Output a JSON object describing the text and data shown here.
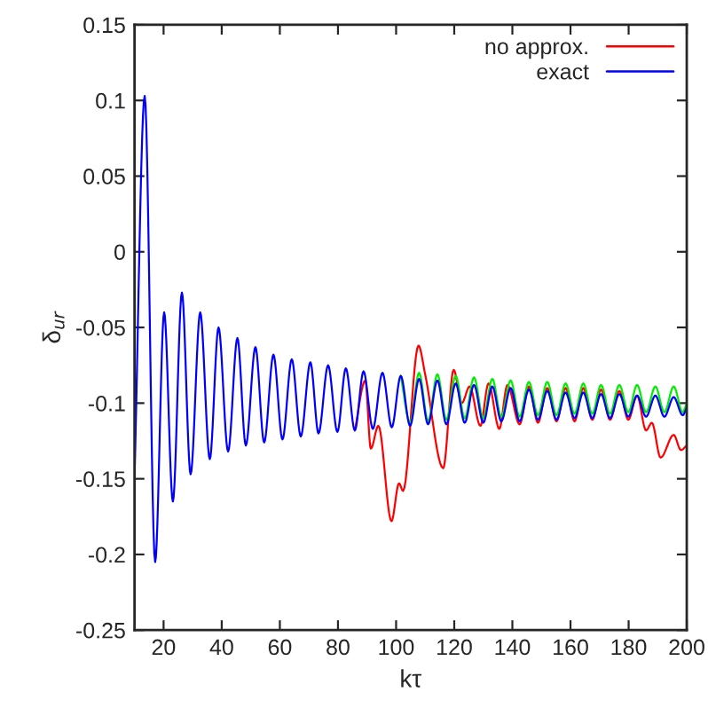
{
  "chart_data": {
    "type": "line",
    "xlabel": "kτ",
    "ylabel": "δ$_{ur}$",
    "xlim": [
      10,
      200
    ],
    "ylim": [
      -0.25,
      0.15
    ],
    "xticks": [
      20,
      40,
      60,
      80,
      100,
      120,
      140,
      160,
      180,
      200
    ],
    "yticks": [
      -0.25,
      -0.2,
      -0.15,
      -0.1,
      -0.05,
      0,
      0.05,
      0.1,
      0.15
    ],
    "grid": false,
    "legend": "top right",
    "marker": "none",
    "line_style": "solid",
    "series": [
      {
        "name": "no approx.",
        "color": "#ff0000",
        "x": [
          85.8,
          89.4,
          91.3,
          93.9,
          98.4,
          101,
          102.4,
          107.7,
          110,
          116.2,
          119.8,
          122.6,
          125.3,
          129,
          131.8,
          135.5,
          138.3,
          142.5,
          145.7,
          148.8,
          152,
          155.2,
          158.3,
          161.4,
          164.4,
          167.5,
          170.5,
          173.6,
          176.8,
          179.9,
          182.9,
          186,
          188,
          191,
          195.5,
          198,
          200
        ],
        "values": [
          -0.118,
          -0.085,
          -0.13,
          -0.115,
          -0.178,
          -0.153,
          -0.158,
          -0.062,
          -0.081,
          -0.143,
          -0.078,
          -0.1,
          -0.089,
          -0.115,
          -0.087,
          -0.117,
          -0.088,
          -0.114,
          -0.089,
          -0.113,
          -0.09,
          -0.112,
          -0.09,
          -0.112,
          -0.09,
          -0.111,
          -0.091,
          -0.111,
          -0.092,
          -0.111,
          -0.095,
          -0.118,
          -0.113,
          -0.136,
          -0.121,
          -0.131,
          -0.128
        ]
      },
      {
        "color": "#00ee00",
        "x": [
          101.6,
          104.8,
          107.9,
          111,
          114.2,
          117.3,
          120.5,
          123.6,
          126.8,
          130,
          133.1,
          136.2,
          139.4,
          142.5,
          145.7,
          148.8,
          152,
          155.2,
          158.3,
          161.4,
          164.4,
          167.5,
          170.5,
          173.6,
          176.8,
          179.9,
          182.9,
          186,
          189.2,
          192.3,
          195.5,
          198.6,
          200
        ],
        "values": [
          -0.082,
          -0.113,
          -0.08,
          -0.112,
          -0.081,
          -0.111,
          -0.082,
          -0.11,
          -0.083,
          -0.11,
          -0.084,
          -0.109,
          -0.085,
          -0.109,
          -0.086,
          -0.108,
          -0.086,
          -0.108,
          -0.087,
          -0.107,
          -0.087,
          -0.107,
          -0.088,
          -0.107,
          -0.088,
          -0.106,
          -0.088,
          -0.106,
          -0.089,
          -0.106,
          -0.089,
          -0.106,
          -0.1
        ]
      },
      {
        "name": "exact",
        "color": "#0000ff",
        "x": [
          10,
          13.5,
          17.1,
          20.2,
          23.2,
          26.3,
          29.3,
          32.6,
          35.9,
          38.9,
          42.2,
          45.4,
          48.3,
          51.6,
          54.6,
          57.8,
          60.9,
          64.1,
          67.2,
          70.5,
          73.3,
          76.6,
          79.8,
          82.7,
          85.8,
          88.8,
          92,
          95.3,
          98.5,
          101.6,
          104.8,
          107.9,
          111,
          114.2,
          117.3,
          120.5,
          123.6,
          126.8,
          130,
          133.1,
          136.2,
          139.4,
          142.5,
          145.7,
          148.8,
          152,
          155.2,
          158.3,
          161.4,
          164.4,
          167.5,
          170.5,
          173.6,
          176.8,
          179.9,
          182.9,
          186,
          189.2,
          192.3,
          195.5,
          198.6,
          200
        ],
        "values": [
          -0.15,
          0.103,
          -0.205,
          -0.04,
          -0.165,
          -0.027,
          -0.147,
          -0.04,
          -0.137,
          -0.05,
          -0.132,
          -0.057,
          -0.128,
          -0.063,
          -0.126,
          -0.068,
          -0.124,
          -0.071,
          -0.122,
          -0.073,
          -0.12,
          -0.075,
          -0.119,
          -0.077,
          -0.118,
          -0.079,
          -0.117,
          -0.08,
          -0.116,
          -0.082,
          -0.115,
          -0.084,
          -0.114,
          -0.085,
          -0.114,
          -0.087,
          -0.113,
          -0.088,
          -0.113,
          -0.089,
          -0.112,
          -0.09,
          -0.112,
          -0.091,
          -0.111,
          -0.092,
          -0.111,
          -0.093,
          -0.11,
          -0.093,
          -0.11,
          -0.094,
          -0.11,
          -0.094,
          -0.109,
          -0.095,
          -0.109,
          -0.095,
          -0.109,
          -0.096,
          -0.108,
          -0.103
        ]
      }
    ]
  }
}
